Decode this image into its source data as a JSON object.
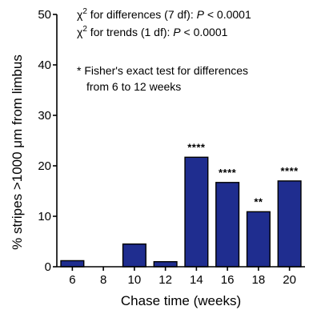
{
  "chart_data": {
    "type": "bar",
    "categories": [
      "6",
      "8",
      "10",
      "12",
      "14",
      "16",
      "18",
      "20"
    ],
    "values": [
      1.2,
      0,
      4.5,
      1.0,
      21.7,
      16.7,
      10.9,
      17.0
    ],
    "significance": [
      "",
      "",
      "",
      "",
      "****",
      "****",
      "**",
      "****"
    ],
    "xlabel": "Chase time (weeks)",
    "ylabel": "% stripes >1000 μm from limbus",
    "ylim": [
      0,
      50
    ],
    "yticks": [
      0,
      10,
      20,
      30,
      40,
      50
    ],
    "grid": false,
    "bar_color": "#1f2d8f",
    "annotations": {
      "chi_diff": {
        "prefix": "χ",
        "sup": "2",
        "text": " for differences (7 df):  ",
        "p": "P",
        "rest": " < 0.0001"
      },
      "chi_trend": {
        "prefix": "χ",
        "sup": "2",
        "text": " for trends (1 df): ",
        "p": "P",
        "rest": " < 0.0001"
      },
      "fisher_line1": "* Fisher's exact test for differences",
      "fisher_line2": "from 6 to 12 weeks"
    }
  }
}
